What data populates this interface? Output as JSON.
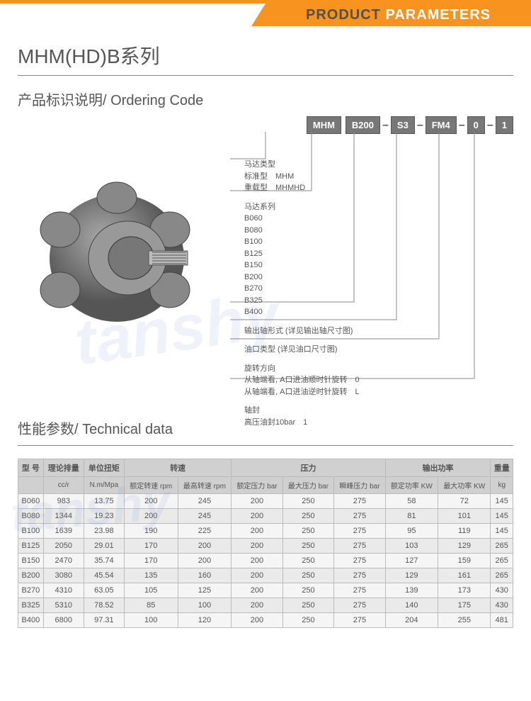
{
  "banner": {
    "text1": "PRODUCT",
    "text2": " PARAMETERS",
    "bg_color": "#f7931e",
    "text1_color": "#505050",
    "text2_color": "#ffffff"
  },
  "series_title": "MHM(HD)B系列",
  "ordering": {
    "title": "产品标识说明/ Ordering Code",
    "boxes": [
      "MHM",
      "B200",
      "S3",
      "FM4",
      "0",
      "1"
    ],
    "groups": [
      {
        "title": "马达类型",
        "lines": [
          "标准型　MHM",
          "重载型　MHMHD"
        ]
      },
      {
        "title": "马达系列",
        "lines": [
          "B060",
          "B080",
          "B100",
          "B125",
          "B150",
          "B200",
          "B270",
          "B325",
          "B400"
        ]
      },
      {
        "title": "输出轴形式 (详见输出轴尺寸图)",
        "lines": []
      },
      {
        "title": "油口类型 (详见油口尺寸图)",
        "lines": []
      },
      {
        "title": "旋转方向",
        "lines": [
          "从轴端看, A口进油顺时针旋转　0",
          "从轴端看, A口进油逆时针旋转　L"
        ]
      },
      {
        "title": "轴封",
        "lines": [
          "高压油封10bar　1"
        ]
      }
    ]
  },
  "tech": {
    "title": "性能参数/ Technical data",
    "header_groups": [
      {
        "label": "型 号",
        "span": 1,
        "sub": [
          ""
        ]
      },
      {
        "label": "理论排量",
        "span": 1,
        "sub": [
          "cc/r"
        ]
      },
      {
        "label": "单位扭矩",
        "span": 1,
        "sub": [
          "N.m/Mpa"
        ]
      },
      {
        "label": "转速",
        "span": 2,
        "sub": [
          "额定转速 rpm",
          "最高转速 rpm"
        ]
      },
      {
        "label": "压力",
        "span": 3,
        "sub": [
          "额定压力 bar",
          "最大压力 bar",
          "瞬峰压力 bar"
        ]
      },
      {
        "label": "输出功率",
        "span": 2,
        "sub": [
          "额定功率 KW",
          "最大功率 KW"
        ]
      },
      {
        "label": "重量",
        "span": 1,
        "sub": [
          "kg"
        ]
      }
    ],
    "rows": [
      [
        "B060",
        "983",
        "13.75",
        "200",
        "245",
        "200",
        "250",
        "275",
        "58",
        "72",
        "145"
      ],
      [
        "B080",
        "1344",
        "19.23",
        "200",
        "245",
        "200",
        "250",
        "275",
        "81",
        "101",
        "145"
      ],
      [
        "B100",
        "1639",
        "23.98",
        "190",
        "225",
        "200",
        "250",
        "275",
        "95",
        "119",
        "145"
      ],
      [
        "B125",
        "2050",
        "29.01",
        "170",
        "200",
        "200",
        "250",
        "275",
        "103",
        "129",
        "265"
      ],
      [
        "B150",
        "2470",
        "35.74",
        "170",
        "200",
        "200",
        "250",
        "275",
        "127",
        "159",
        "265"
      ],
      [
        "B200",
        "3080",
        "45.54",
        "135",
        "160",
        "200",
        "250",
        "275",
        "129",
        "161",
        "265"
      ],
      [
        "B270",
        "4310",
        "63.05",
        "105",
        "125",
        "200",
        "250",
        "275",
        "139",
        "173",
        "430"
      ],
      [
        "B325",
        "5310",
        "78.52",
        "85",
        "100",
        "200",
        "250",
        "275",
        "140",
        "175",
        "430"
      ],
      [
        "B400",
        "6800",
        "97.31",
        "100",
        "120",
        "200",
        "250",
        "275",
        "204",
        "255",
        "481"
      ]
    ],
    "header_bg": "#d0d0d0",
    "row_even_bg": "#eaeaea",
    "row_odd_bg": "#f5f5f5",
    "border_color": "#bbbbbb"
  },
  "watermark": "tanshy"
}
